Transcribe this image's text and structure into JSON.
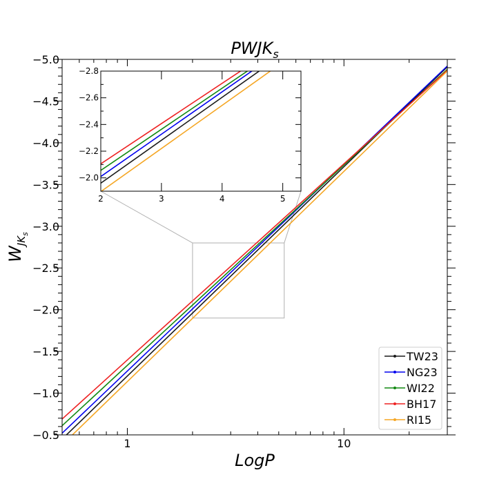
{
  "chart_data": {
    "type": "line",
    "title": "PWJK",
    "title_subscript": "s",
    "xlabel": "LogP",
    "ylabel": "W",
    "ylabel_subscript": "JK",
    "ylabel_subsubscript": "s",
    "x_scale": "log",
    "xlim": [
      0.5,
      30
    ],
    "ylim": [
      -0.5,
      -5.0
    ],
    "y_inverted": true,
    "x_tick_labels": [
      "1",
      "10"
    ],
    "x_tick_values": [
      1,
      10
    ],
    "y_tick_values": [
      -0.5,
      -1.0,
      -1.5,
      -2.0,
      -2.5,
      -3.0,
      -3.5,
      -4.0,
      -4.5,
      -5.0
    ],
    "y_tick_labels": [
      "−0.5",
      "−1.0",
      "−1.5",
      "−2.0",
      "−2.5",
      "−3.0",
      "−3.5",
      "−4.0",
      "−4.5",
      "−5.0"
    ],
    "legend_position": "lower-right",
    "series": [
      {
        "name": "TW23",
        "color": "#1a1a1a",
        "x": [
          0.5,
          30
        ],
        "y": [
          -0.45,
          -4.91
        ]
      },
      {
        "name": "NG23",
        "color": "#0000ee",
        "x": [
          0.5,
          30
        ],
        "y": [
          -0.52,
          -4.92
        ]
      },
      {
        "name": "WI22",
        "color": "#118811",
        "x": [
          0.5,
          30
        ],
        "y": [
          -0.61,
          -4.88
        ]
      },
      {
        "name": "BH17",
        "color": "#ee2222",
        "x": [
          0.5,
          30
        ],
        "y": [
          -0.69,
          -4.87
        ]
      },
      {
        "name": "RI15",
        "color": "#f5a623",
        "x": [
          0.5,
          30
        ],
        "y": [
          -0.38,
          -4.86
        ]
      }
    ],
    "inset": {
      "xlim": [
        2,
        5.3
      ],
      "ylim": [
        -1.9,
        -2.8
      ],
      "x_tick_values": [
        2,
        3,
        4,
        5
      ],
      "x_tick_labels": [
        "2",
        "3",
        "4",
        "5"
      ],
      "y_tick_values": [
        -2.0,
        -2.2,
        -2.4,
        -2.6,
        -2.8
      ],
      "y_tick_labels": [
        "−2.0",
        "−2.2",
        "−2.4",
        "−2.6",
        "−2.8"
      ]
    }
  }
}
